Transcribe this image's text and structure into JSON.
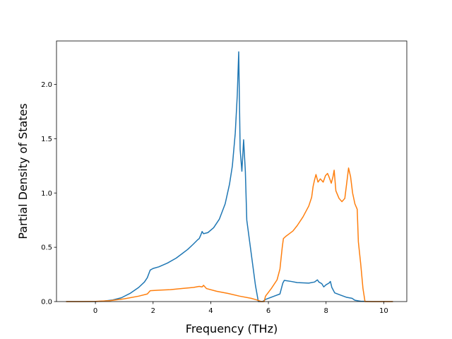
{
  "chart_data": {
    "type": "line",
    "title": "",
    "xlabel": "Frequency (THz)",
    "ylabel": "Partial Density of States",
    "xlim": [
      -1.35,
      10.8
    ],
    "ylim": [
      0.0,
      2.4
    ],
    "xticks": [
      0,
      2,
      4,
      6,
      8,
      10
    ],
    "xtick_labels": [
      "0",
      "2",
      "4",
      "6",
      "8",
      "10"
    ],
    "yticks": [
      0.0,
      0.5,
      1.0,
      1.5,
      2.0
    ],
    "ytick_labels": [
      "0.0",
      "0.5",
      "1.0",
      "1.5",
      "2.0"
    ],
    "grid": false,
    "series": [
      {
        "color": "#1f77b4",
        "points": [
          [
            -1.0,
            0.0
          ],
          [
            -0.5,
            0.0
          ],
          [
            0.0,
            0.0
          ],
          [
            0.3,
            0.005
          ],
          [
            0.6,
            0.015
          ],
          [
            0.9,
            0.035
          ],
          [
            1.2,
            0.075
          ],
          [
            1.5,
            0.13
          ],
          [
            1.7,
            0.18
          ],
          [
            1.8,
            0.22
          ],
          [
            1.9,
            0.29
          ],
          [
            2.0,
            0.305
          ],
          [
            2.2,
            0.32
          ],
          [
            2.5,
            0.355
          ],
          [
            2.8,
            0.4
          ],
          [
            3.0,
            0.44
          ],
          [
            3.2,
            0.48
          ],
          [
            3.4,
            0.53
          ],
          [
            3.55,
            0.57
          ],
          [
            3.6,
            0.58
          ],
          [
            3.65,
            0.61
          ],
          [
            3.7,
            0.645
          ],
          [
            3.75,
            0.625
          ],
          [
            3.9,
            0.635
          ],
          [
            4.1,
            0.68
          ],
          [
            4.3,
            0.76
          ],
          [
            4.5,
            0.9
          ],
          [
            4.65,
            1.08
          ],
          [
            4.75,
            1.25
          ],
          [
            4.85,
            1.55
          ],
          [
            4.92,
            1.9
          ],
          [
            4.97,
            2.3
          ],
          [
            5.02,
            1.4
          ],
          [
            5.08,
            1.2
          ],
          [
            5.14,
            1.49
          ],
          [
            5.2,
            1.2
          ],
          [
            5.25,
            0.75
          ],
          [
            5.35,
            0.55
          ],
          [
            5.45,
            0.35
          ],
          [
            5.55,
            0.15
          ],
          [
            5.65,
            0.0
          ],
          [
            5.8,
            0.0
          ],
          [
            5.9,
            0.02
          ],
          [
            6.2,
            0.05
          ],
          [
            6.4,
            0.07
          ],
          [
            6.5,
            0.17
          ],
          [
            6.55,
            0.195
          ],
          [
            6.8,
            0.185
          ],
          [
            7.0,
            0.175
          ],
          [
            7.4,
            0.17
          ],
          [
            7.6,
            0.18
          ],
          [
            7.7,
            0.2
          ],
          [
            7.75,
            0.18
          ],
          [
            7.85,
            0.165
          ],
          [
            7.92,
            0.135
          ],
          [
            8.0,
            0.155
          ],
          [
            8.1,
            0.17
          ],
          [
            8.15,
            0.185
          ],
          [
            8.2,
            0.13
          ],
          [
            8.3,
            0.08
          ],
          [
            8.5,
            0.06
          ],
          [
            8.7,
            0.04
          ],
          [
            8.9,
            0.03
          ],
          [
            9.0,
            0.012
          ],
          [
            9.2,
            0.003
          ],
          [
            9.6,
            0.0
          ],
          [
            10.0,
            0.0
          ],
          [
            10.3,
            0.0
          ]
        ]
      },
      {
        "color": "#ff7f0e",
        "points": [
          [
            -1.0,
            0.0
          ],
          [
            -0.5,
            0.0
          ],
          [
            0.0,
            0.002
          ],
          [
            0.5,
            0.008
          ],
          [
            1.0,
            0.025
          ],
          [
            1.5,
            0.05
          ],
          [
            1.8,
            0.07
          ],
          [
            1.9,
            0.1
          ],
          [
            2.2,
            0.105
          ],
          [
            2.6,
            0.11
          ],
          [
            3.0,
            0.12
          ],
          [
            3.4,
            0.13
          ],
          [
            3.6,
            0.14
          ],
          [
            3.7,
            0.135
          ],
          [
            3.75,
            0.15
          ],
          [
            3.85,
            0.12
          ],
          [
            4.2,
            0.095
          ],
          [
            4.6,
            0.075
          ],
          [
            5.0,
            0.05
          ],
          [
            5.4,
            0.03
          ],
          [
            5.6,
            0.015
          ],
          [
            5.75,
            0.0
          ],
          [
            5.85,
            0.0
          ],
          [
            5.9,
            0.05
          ],
          [
            6.1,
            0.12
          ],
          [
            6.3,
            0.2
          ],
          [
            6.4,
            0.3
          ],
          [
            6.48,
            0.5
          ],
          [
            6.52,
            0.58
          ],
          [
            6.6,
            0.6
          ],
          [
            6.7,
            0.62
          ],
          [
            6.85,
            0.65
          ],
          [
            7.0,
            0.7
          ],
          [
            7.2,
            0.78
          ],
          [
            7.4,
            0.88
          ],
          [
            7.5,
            0.96
          ],
          [
            7.55,
            1.06
          ],
          [
            7.6,
            1.12
          ],
          [
            7.65,
            1.17
          ],
          [
            7.72,
            1.1
          ],
          [
            7.8,
            1.13
          ],
          [
            7.9,
            1.1
          ],
          [
            7.98,
            1.16
          ],
          [
            8.05,
            1.18
          ],
          [
            8.1,
            1.15
          ],
          [
            8.18,
            1.09
          ],
          [
            8.24,
            1.15
          ],
          [
            8.28,
            1.21
          ],
          [
            8.34,
            1.02
          ],
          [
            8.45,
            0.95
          ],
          [
            8.55,
            0.92
          ],
          [
            8.65,
            0.95
          ],
          [
            8.72,
            1.1
          ],
          [
            8.78,
            1.23
          ],
          [
            8.85,
            1.15
          ],
          [
            8.92,
            1.0
          ],
          [
            9.0,
            0.9
          ],
          [
            9.08,
            0.85
          ],
          [
            9.12,
            0.55
          ],
          [
            9.2,
            0.35
          ],
          [
            9.28,
            0.12
          ],
          [
            9.35,
            0.0
          ],
          [
            9.6,
            0.0
          ],
          [
            10.3,
            0.0
          ]
        ]
      }
    ]
  }
}
